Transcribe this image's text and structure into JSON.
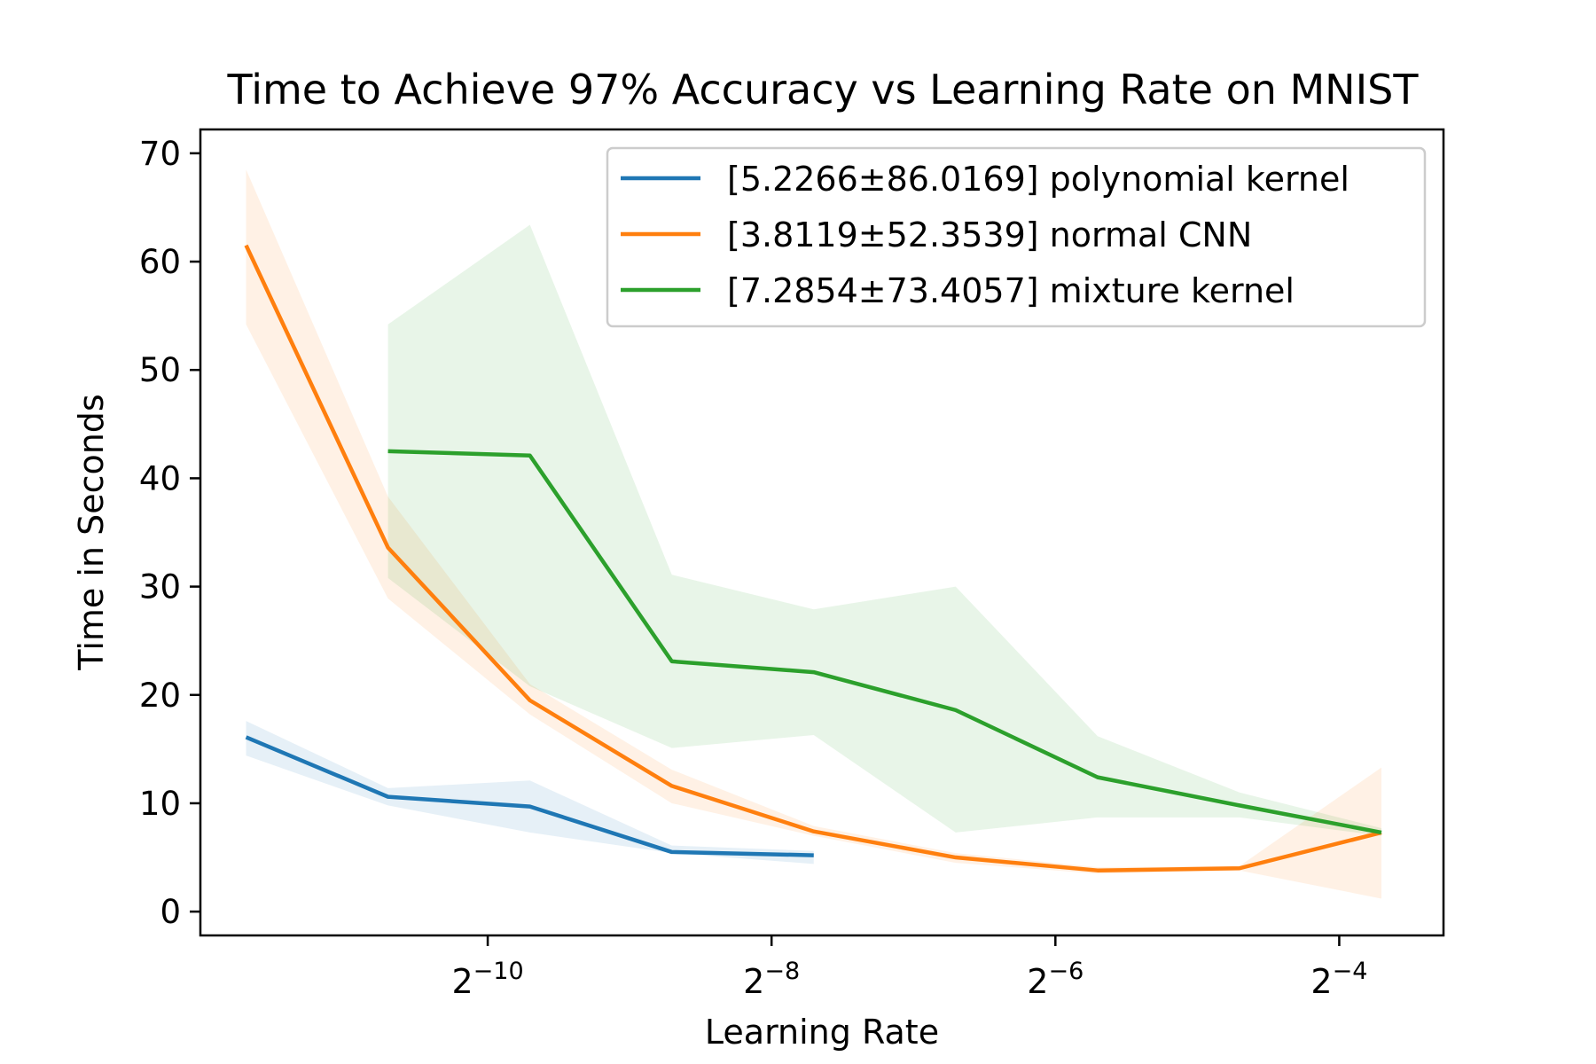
{
  "chart_data": {
    "type": "line",
    "title": "Time to Achieve 97% Accuracy vs Learning Rate on MNIST",
    "xlabel": "Learning Rate",
    "ylabel": "Time in Seconds",
    "x_scale": "log2",
    "xlim": [
      0.00024,
      0.104
    ],
    "ylim": [
      -2.2,
      72.2
    ],
    "xticks": [
      {
        "value": 0.0009765625,
        "base": "2",
        "exp": "−10"
      },
      {
        "value": 0.00390625,
        "base": "2",
        "exp": "−8"
      },
      {
        "value": 0.015625,
        "base": "2",
        "exp": "−6"
      },
      {
        "value": 0.0625,
        "base": "2",
        "exp": "−4"
      }
    ],
    "yticks": [
      0,
      10,
      20,
      30,
      40,
      50,
      60,
      70
    ],
    "legend_position": "top-right",
    "series": [
      {
        "name": "[5.2266±86.0169] polynomial kernel",
        "color": "#1f77b4",
        "x": [
          0.0003,
          0.0006,
          0.0012,
          0.0024,
          0.0048
        ],
        "y": [
          16.1,
          10.6,
          9.7,
          5.5,
          5.2
        ],
        "band_lower": [
          14.4,
          9.8,
          7.3,
          5.4,
          4.4
        ],
        "band_upper": [
          17.6,
          11.4,
          12.1,
          6.1,
          5.6
        ]
      },
      {
        "name": "[3.8119±52.3539] normal CNN",
        "color": "#ff7f0e",
        "x": [
          0.0003,
          0.0006,
          0.0012,
          0.0024,
          0.0048,
          0.0096,
          0.0192,
          0.0384,
          0.0768
        ],
        "y": [
          61.5,
          33.6,
          19.5,
          11.6,
          7.4,
          5.0,
          3.8,
          4.0,
          7.3
        ],
        "band_lower": [
          54.2,
          28.9,
          18.2,
          10.0,
          7.0,
          4.5,
          3.5,
          3.8,
          1.2
        ],
        "band_upper": [
          68.5,
          38.3,
          21.0,
          13.1,
          7.9,
          5.4,
          4.1,
          4.2,
          13.3
        ]
      },
      {
        "name": "[7.2854±73.4057] mixture kernel",
        "color": "#2ca02c",
        "x": [
          0.0006,
          0.0012,
          0.0024,
          0.0048,
          0.0096,
          0.0192,
          0.0384,
          0.0768
        ],
        "y": [
          42.5,
          42.1,
          23.1,
          22.1,
          18.6,
          12.4,
          9.8,
          7.3
        ],
        "band_lower": [
          30.8,
          20.8,
          15.1,
          16.3,
          7.3,
          8.7,
          8.7,
          7.0
        ],
        "band_upper": [
          54.2,
          63.4,
          31.1,
          27.9,
          30.0,
          16.2,
          11.0,
          7.7
        ]
      }
    ]
  }
}
